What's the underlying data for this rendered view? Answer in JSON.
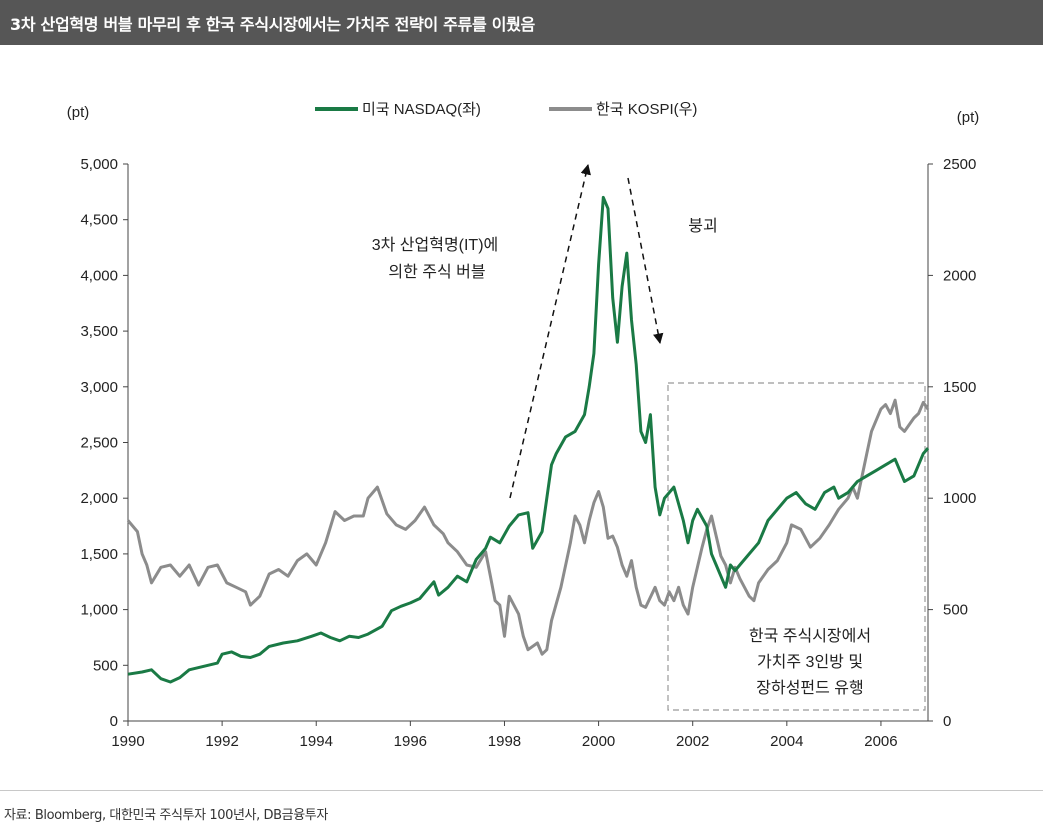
{
  "title": "3차 산업혁명 버블 마무리 후 한국 주식시장에서는 가치주 전략이 주류를 이뤘음",
  "source": "자료: Bloomberg, 대한민국 주식투자 100년사, DB금융투자",
  "colors": {
    "nasdaq": "#1a7a45",
    "kospi": "#8c8c8c",
    "title_bg": "#565656"
  },
  "chart_data": {
    "type": "line",
    "x_range": [
      1990,
      2007
    ],
    "x_ticks": [
      "1990",
      "1992",
      "1994",
      "1996",
      "1998",
      "2000",
      "2002",
      "2004",
      "2006"
    ],
    "y_left": {
      "unit": "(pt)",
      "range": [
        0,
        5000
      ],
      "ticks": [
        "0",
        "500",
        "1,000",
        "1,500",
        "2,000",
        "2,500",
        "3,000",
        "3,500",
        "4,000",
        "4,500",
        "5,000"
      ]
    },
    "y_right": {
      "unit": "(pt)",
      "range": [
        0,
        2500
      ],
      "ticks": [
        "0",
        "500",
        "1000",
        "1500",
        "2000",
        "2500"
      ]
    },
    "legend_position": "top-center",
    "grid": false,
    "series": [
      {
        "name": "미국 NASDAQ(좌)",
        "axis": "left",
        "color": "#1a7a45",
        "points": [
          [
            1990.0,
            420
          ],
          [
            1990.3,
            440
          ],
          [
            1990.5,
            460
          ],
          [
            1990.7,
            380
          ],
          [
            1990.9,
            350
          ],
          [
            1991.1,
            390
          ],
          [
            1991.3,
            460
          ],
          [
            1991.6,
            490
          ],
          [
            1991.9,
            520
          ],
          [
            1992.0,
            600
          ],
          [
            1992.2,
            620
          ],
          [
            1992.4,
            580
          ],
          [
            1992.6,
            570
          ],
          [
            1992.8,
            600
          ],
          [
            1993.0,
            670
          ],
          [
            1993.3,
            700
          ],
          [
            1993.6,
            720
          ],
          [
            1993.9,
            760
          ],
          [
            1994.1,
            790
          ],
          [
            1994.3,
            750
          ],
          [
            1994.5,
            720
          ],
          [
            1994.7,
            760
          ],
          [
            1994.9,
            750
          ],
          [
            1995.1,
            780
          ],
          [
            1995.4,
            850
          ],
          [
            1995.6,
            990
          ],
          [
            1995.8,
            1030
          ],
          [
            1996.0,
            1060
          ],
          [
            1996.2,
            1100
          ],
          [
            1996.4,
            1200
          ],
          [
            1996.5,
            1250
          ],
          [
            1996.6,
            1130
          ],
          [
            1996.8,
            1200
          ],
          [
            1997.0,
            1300
          ],
          [
            1997.2,
            1250
          ],
          [
            1997.4,
            1450
          ],
          [
            1997.6,
            1550
          ],
          [
            1997.7,
            1650
          ],
          [
            1997.9,
            1600
          ],
          [
            1998.1,
            1750
          ],
          [
            1998.3,
            1850
          ],
          [
            1998.5,
            1870
          ],
          [
            1998.6,
            1550
          ],
          [
            1998.8,
            1700
          ],
          [
            1999.0,
            2300
          ],
          [
            1999.1,
            2400
          ],
          [
            1999.3,
            2550
          ],
          [
            1999.5,
            2600
          ],
          [
            1999.7,
            2750
          ],
          [
            1999.8,
            3000
          ],
          [
            1999.9,
            3300
          ],
          [
            2000.0,
            4100
          ],
          [
            2000.1,
            4700
          ],
          [
            2000.2,
            4600
          ],
          [
            2000.3,
            3800
          ],
          [
            2000.4,
            3400
          ],
          [
            2000.5,
            3900
          ],
          [
            2000.6,
            4200
          ],
          [
            2000.7,
            3600
          ],
          [
            2000.8,
            3200
          ],
          [
            2000.9,
            2600
          ],
          [
            2001.0,
            2500
          ],
          [
            2001.1,
            2750
          ],
          [
            2001.2,
            2100
          ],
          [
            2001.3,
            1850
          ],
          [
            2001.4,
            2000
          ],
          [
            2001.6,
            2100
          ],
          [
            2001.8,
            1800
          ],
          [
            2001.9,
            1600
          ],
          [
            2002.0,
            1800
          ],
          [
            2002.1,
            1900
          ],
          [
            2002.3,
            1750
          ],
          [
            2002.4,
            1500
          ],
          [
            2002.5,
            1400
          ],
          [
            2002.6,
            1300
          ],
          [
            2002.7,
            1200
          ],
          [
            2002.8,
            1400
          ],
          [
            2002.9,
            1350
          ],
          [
            2003.0,
            1400
          ],
          [
            2003.2,
            1500
          ],
          [
            2003.4,
            1600
          ],
          [
            2003.6,
            1800
          ],
          [
            2003.8,
            1900
          ],
          [
            2004.0,
            2000
          ],
          [
            2004.2,
            2050
          ],
          [
            2004.4,
            1950
          ],
          [
            2004.6,
            1900
          ],
          [
            2004.8,
            2050
          ],
          [
            2005.0,
            2100
          ],
          [
            2005.1,
            2000
          ],
          [
            2005.3,
            2050
          ],
          [
            2005.5,
            2150
          ],
          [
            2005.7,
            2200
          ],
          [
            2005.9,
            2250
          ],
          [
            2006.1,
            2300
          ],
          [
            2006.3,
            2350
          ],
          [
            2006.4,
            2250
          ],
          [
            2006.5,
            2150
          ],
          [
            2006.7,
            2200
          ],
          [
            2006.9,
            2400
          ],
          [
            2007.0,
            2450
          ]
        ]
      },
      {
        "name": "한국 KOSPI(우)",
        "axis": "right",
        "color": "#8c8c8c",
        "points": [
          [
            1990.0,
            900
          ],
          [
            1990.2,
            850
          ],
          [
            1990.3,
            750
          ],
          [
            1990.4,
            700
          ],
          [
            1990.5,
            620
          ],
          [
            1990.7,
            690
          ],
          [
            1990.9,
            700
          ],
          [
            1991.1,
            650
          ],
          [
            1991.3,
            700
          ],
          [
            1991.5,
            610
          ],
          [
            1991.7,
            690
          ],
          [
            1991.9,
            700
          ],
          [
            1992.1,
            620
          ],
          [
            1992.3,
            600
          ],
          [
            1992.5,
            580
          ],
          [
            1992.6,
            520
          ],
          [
            1992.8,
            560
          ],
          [
            1993.0,
            660
          ],
          [
            1993.2,
            680
          ],
          [
            1993.4,
            650
          ],
          [
            1993.6,
            720
          ],
          [
            1993.8,
            750
          ],
          [
            1994.0,
            700
          ],
          [
            1994.2,
            800
          ],
          [
            1994.4,
            940
          ],
          [
            1994.6,
            900
          ],
          [
            1994.8,
            920
          ],
          [
            1995.0,
            920
          ],
          [
            1995.1,
            1000
          ],
          [
            1995.3,
            1050
          ],
          [
            1995.5,
            930
          ],
          [
            1995.7,
            880
          ],
          [
            1995.9,
            860
          ],
          [
            1996.1,
            900
          ],
          [
            1996.3,
            960
          ],
          [
            1996.5,
            880
          ],
          [
            1996.7,
            840
          ],
          [
            1996.8,
            800
          ],
          [
            1997.0,
            760
          ],
          [
            1997.2,
            700
          ],
          [
            1997.4,
            690
          ],
          [
            1997.6,
            760
          ],
          [
            1997.7,
            650
          ],
          [
            1997.8,
            540
          ],
          [
            1997.9,
            520
          ],
          [
            1998.0,
            380
          ],
          [
            1998.1,
            560
          ],
          [
            1998.3,
            480
          ],
          [
            1998.4,
            380
          ],
          [
            1998.5,
            320
          ],
          [
            1998.7,
            350
          ],
          [
            1998.8,
            300
          ],
          [
            1998.9,
            320
          ],
          [
            1999.0,
            450
          ],
          [
            1999.2,
            600
          ],
          [
            1999.4,
            800
          ],
          [
            1999.5,
            920
          ],
          [
            1999.6,
            880
          ],
          [
            1999.7,
            800
          ],
          [
            1999.8,
            900
          ],
          [
            1999.9,
            980
          ],
          [
            2000.0,
            1030
          ],
          [
            2000.1,
            960
          ],
          [
            2000.2,
            820
          ],
          [
            2000.3,
            830
          ],
          [
            2000.4,
            780
          ],
          [
            2000.5,
            700
          ],
          [
            2000.6,
            650
          ],
          [
            2000.7,
            720
          ],
          [
            2000.8,
            600
          ],
          [
            2000.9,
            520
          ],
          [
            2001.0,
            510
          ],
          [
            2001.2,
            600
          ],
          [
            2001.3,
            540
          ],
          [
            2001.4,
            520
          ],
          [
            2001.5,
            580
          ],
          [
            2001.6,
            540
          ],
          [
            2001.7,
            600
          ],
          [
            2001.8,
            520
          ],
          [
            2001.9,
            480
          ],
          [
            2002.0,
            600
          ],
          [
            2002.2,
            780
          ],
          [
            2002.3,
            860
          ],
          [
            2002.4,
            920
          ],
          [
            2002.5,
            830
          ],
          [
            2002.6,
            740
          ],
          [
            2002.7,
            700
          ],
          [
            2002.8,
            620
          ],
          [
            2002.9,
            690
          ],
          [
            2003.0,
            640
          ],
          [
            2003.1,
            600
          ],
          [
            2003.2,
            560
          ],
          [
            2003.3,
            540
          ],
          [
            2003.4,
            620
          ],
          [
            2003.6,
            680
          ],
          [
            2003.8,
            720
          ],
          [
            2004.0,
            800
          ],
          [
            2004.1,
            880
          ],
          [
            2004.3,
            860
          ],
          [
            2004.5,
            780
          ],
          [
            2004.7,
            820
          ],
          [
            2004.9,
            880
          ],
          [
            2005.1,
            950
          ],
          [
            2005.3,
            1000
          ],
          [
            2005.4,
            1050
          ],
          [
            2005.5,
            1000
          ],
          [
            2005.6,
            1100
          ],
          [
            2005.7,
            1200
          ],
          [
            2005.8,
            1300
          ],
          [
            2005.9,
            1350
          ],
          [
            2006.0,
            1400
          ],
          [
            2006.1,
            1420
          ],
          [
            2006.2,
            1380
          ],
          [
            2006.3,
            1440
          ],
          [
            2006.4,
            1320
          ],
          [
            2006.5,
            1300
          ],
          [
            2006.7,
            1360
          ],
          [
            2006.8,
            1380
          ],
          [
            2006.9,
            1430
          ],
          [
            2007.0,
            1400
          ]
        ]
      }
    ],
    "annotations": {
      "bubble": [
        "3차 산업혁명(IT)에",
        "의한 주식 버블"
      ],
      "collapse": "붕괴",
      "value": [
        "한국 주식시장에서",
        "가치주 3인방 및",
        "장하성펀드 유행"
      ]
    }
  }
}
